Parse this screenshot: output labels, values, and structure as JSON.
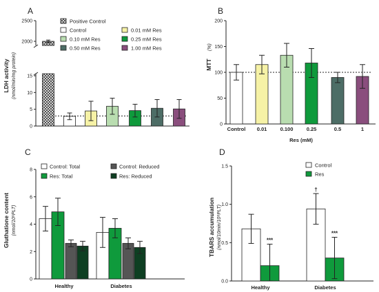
{
  "colors": {
    "white": "#ffffff",
    "yellow": "#f6f2a6",
    "light_green": "#b9ddb0",
    "green": "#0f9a3c",
    "slate": "#4d6d66",
    "purple": "#8a4e7d",
    "dark_gray": "#555555",
    "dark_green": "#0e3f22",
    "axis": "#222222"
  },
  "chart_data": [
    {
      "panel": "A",
      "type": "bar",
      "ylabel": "LDH activity",
      "ylabel_unit": "(nmol/min/mg protein)",
      "yaxis_break": true,
      "ylim_lower": [
        0,
        15
      ],
      "ylim_upper": [
        1900,
        2500
      ],
      "yticks_lower": [
        "0",
        "5",
        "10",
        "15"
      ],
      "yticks_upper": [
        "2000",
        "2500"
      ],
      "reference_line": 3.0,
      "legend": [
        "Positive Control",
        "Control",
        "0.01 mM Res",
        "0.10 mM Res",
        "0.25 mM Res",
        "0.50 mM Res",
        "1.00 mM Res"
      ],
      "series": [
        {
          "name": "Positive Control",
          "value": 2000,
          "error": 30,
          "fill": "hatch"
        },
        {
          "name": "Control",
          "value": 2.9,
          "error": 1.0,
          "fill": "#ffffff"
        },
        {
          "name": "0.01 mM Res",
          "value": 4.5,
          "error": 2.9,
          "fill": "#f6f2a6"
        },
        {
          "name": "0.10 mM Res",
          "value": 5.9,
          "error": 2.4,
          "fill": "#b9ddb0"
        },
        {
          "name": "0.25 mM Res",
          "value": 4.6,
          "error": 1.9,
          "fill": "#0f9a3c"
        },
        {
          "name": "0.50 mM Res",
          "value": 5.3,
          "error": 2.6,
          "fill": "#4d6d66"
        },
        {
          "name": "1.00 mM Res",
          "value": 5.1,
          "error": 2.8,
          "fill": "#8a4e7d"
        }
      ]
    },
    {
      "panel": "B",
      "type": "bar",
      "ylabel": "MTT",
      "ylabel_unit": "(%)",
      "xlabel": "Res (mM)",
      "ylim": [
        0,
        200
      ],
      "yticks": [
        "0",
        "50",
        "100",
        "150",
        "200"
      ],
      "reference_line": 100,
      "categories": [
        "Control",
        "0.01",
        "0.100",
        "0.25",
        "0.5",
        "1"
      ],
      "values": [
        100,
        115,
        133,
        118,
        90,
        92
      ],
      "errors": [
        15,
        18,
        23,
        28,
        10,
        23
      ],
      "fills": [
        "#ffffff",
        "#f6f2a6",
        "#b9ddb0",
        "#0f9a3c",
        "#4d6d66",
        "#8a4e7d"
      ]
    },
    {
      "panel": "C",
      "type": "bar",
      "ylabel": "Gluthatione content",
      "ylabel_unit": "(nmol/10⁹PLT)",
      "ylim": [
        0,
        8
      ],
      "yticks": [
        "0",
        "2",
        "4",
        "6",
        "8"
      ],
      "categories": [
        "Healthy",
        "Diabetes"
      ],
      "legend": [
        "Control: Total",
        "Res: Total",
        "Control: Reduced",
        "Res: Reduced"
      ],
      "series": [
        {
          "name": "Control: Total",
          "values": [
            4.4,
            3.4
          ],
          "errors": [
            0.9,
            1.1
          ],
          "fill": "#ffffff"
        },
        {
          "name": "Res: Total",
          "values": [
            4.9,
            3.7
          ],
          "errors": [
            1.0,
            0.7
          ],
          "fill": "#0f9a3c"
        },
        {
          "name": "Control: Reduced",
          "values": [
            2.6,
            2.6
          ],
          "errors": [
            0.25,
            0.4
          ],
          "fill": "#555555"
        },
        {
          "name": "Res: Reduced",
          "values": [
            2.4,
            2.3
          ],
          "errors": [
            0.35,
            0.45
          ],
          "fill": "#0e3f22"
        }
      ]
    },
    {
      "panel": "D",
      "type": "bar",
      "ylabel": "TBARS accumulation",
      "ylabel_unit": "(nmol/10min/10⁹PLT)",
      "ylim": [
        0,
        1.5
      ],
      "yticks": [
        "0.0",
        "0.5",
        "1.0",
        "1.5"
      ],
      "categories": [
        "Healthy",
        "Diabetes"
      ],
      "legend": [
        "Control",
        "Res"
      ],
      "series": [
        {
          "name": "Control",
          "values": [
            0.68,
            0.94
          ],
          "errors": [
            0.19,
            0.2
          ],
          "fill": "#ffffff"
        },
        {
          "name": "Res",
          "values": [
            0.2,
            0.3
          ],
          "errors": [
            0.28,
            0.27
          ],
          "fill": "#0f9a3c"
        }
      ],
      "annotations": [
        {
          "category": "Healthy",
          "series": "Res",
          "text": "***"
        },
        {
          "category": "Diabetes",
          "series": "Res",
          "text": "***"
        },
        {
          "category": "Diabetes",
          "series": "Control",
          "text": "†"
        }
      ]
    }
  ]
}
